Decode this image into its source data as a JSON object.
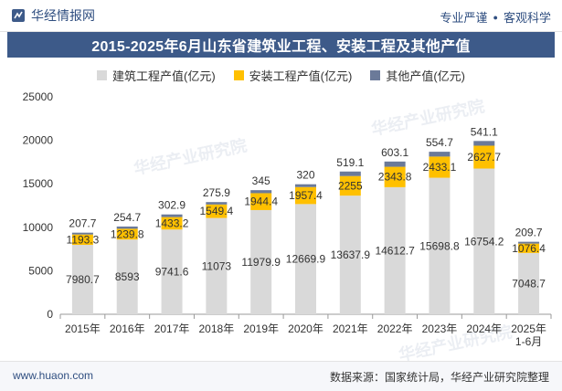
{
  "header": {
    "brand": "华经情报网",
    "tags": [
      "专业严谨",
      "客观科学"
    ]
  },
  "watermark": "华经产业研究院",
  "footer": {
    "url": "www.huaon.com",
    "source": "数据来源：国家统计局，华经产业研究院整理"
  },
  "colors": {
    "construction": "#d9d9d9",
    "installation": "#ffc000",
    "other": "#6b7a99",
    "title_bg": "#3d5a89"
  },
  "chart_data": {
    "type": "bar",
    "stacked": true,
    "title": "2015-2025年6月山东省建筑业工程、安装工程及其他产值",
    "categories": [
      "2015年",
      "2016年",
      "2017年",
      "2018年",
      "2019年",
      "2020年",
      "2021年",
      "2022年",
      "2023年",
      "2024年",
      "2025年\n1-6月"
    ],
    "series": [
      {
        "name": "建筑工程产值(亿元)",
        "values": [
          7980.7,
          8593,
          9741.6,
          11073,
          11979.9,
          12669.9,
          13637.9,
          14612.7,
          15698.8,
          16754.2,
          7048.7
        ],
        "labels": [
          "7980.7",
          "8593",
          "9741.6",
          "11073",
          "11979.9",
          "12669.9",
          "13637.9",
          "14612.7",
          "15698.8",
          "16754.2",
          "7048.7"
        ]
      },
      {
        "name": "安装工程产值(亿元)",
        "values": [
          1193.3,
          1239.8,
          1433.2,
          1549.4,
          1944.4,
          1957.4,
          2255,
          2343.8,
          2433.1,
          2627.7,
          1076.4
        ],
        "labels": [
          "1193.3",
          "1239.8",
          "1433.2",
          "1549.4",
          "1944.4",
          "1957.4",
          "2255",
          "2343.8",
          "2433.1",
          "2627.7",
          "1076.4"
        ]
      },
      {
        "name": "其他产值(亿元)",
        "values": [
          207.7,
          254.7,
          302.9,
          275.9,
          345,
          320,
          519.1,
          603.1,
          554.7,
          541.1,
          209.7
        ],
        "labels": [
          "207.7",
          "254.7",
          "302.9",
          "275.9",
          "345",
          "320",
          "519.1",
          "603.1",
          "554.7",
          "541.1",
          "209.7"
        ]
      }
    ],
    "yticks": [
      "0",
      "5000",
      "10000",
      "15000",
      "20000",
      "25000"
    ],
    "ylim": [
      0,
      25000
    ],
    "legend_position": "top",
    "grid": false
  }
}
